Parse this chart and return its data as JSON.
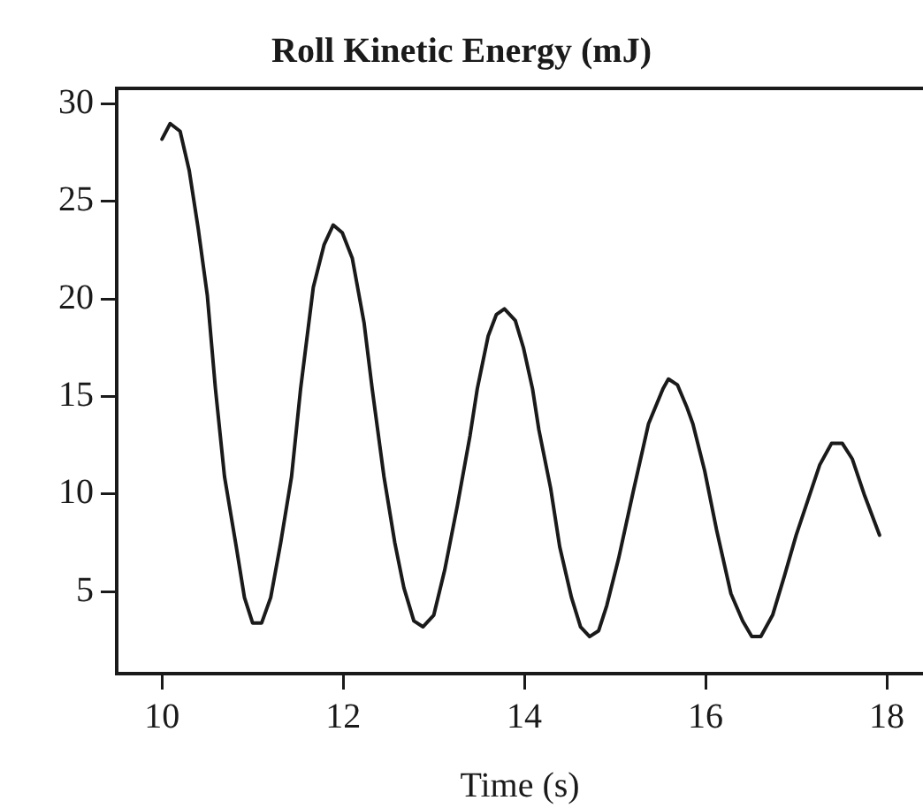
{
  "chart_data": {
    "type": "line",
    "title": "Roll Kinetic Energy (mJ)",
    "xlabel": "Time (s)",
    "xlim": [
      9.5,
      18.4
    ],
    "xticks": [
      10,
      12,
      14,
      16,
      18
    ],
    "ylim": [
      0.8,
      30.8
    ],
    "yticks": [
      5,
      10,
      15,
      20,
      25,
      30
    ],
    "grid": false,
    "legend": false,
    "marker": "none",
    "line_style": "solid",
    "series": [
      {
        "color": "#1a1a1a",
        "x": [
          10.0,
          10.09,
          10.2,
          10.3,
          10.4,
          10.5,
          10.59,
          10.69,
          10.82,
          10.91,
          11.0,
          11.1,
          11.2,
          11.31,
          11.43,
          11.53,
          11.67,
          11.79,
          11.89,
          11.99,
          12.1,
          12.23,
          12.32,
          12.45,
          12.57,
          12.67,
          12.78,
          12.88,
          13.0,
          13.12,
          13.26,
          13.4,
          13.48,
          13.6,
          13.69,
          13.78,
          13.9,
          13.99,
          14.09,
          14.16,
          14.29,
          14.39,
          14.52,
          14.62,
          14.72,
          14.82,
          14.91,
          15.04,
          15.2,
          15.37,
          15.53,
          15.59,
          15.69,
          15.79,
          15.86,
          15.99,
          16.12,
          16.28,
          16.41,
          16.51,
          16.61,
          16.74,
          16.87,
          17.0,
          17.13,
          17.26,
          17.39,
          17.51,
          17.62,
          17.75,
          17.92
        ],
        "values": [
          28.2,
          29.0,
          28.6,
          26.6,
          23.6,
          20.2,
          15.4,
          10.9,
          7.3,
          4.7,
          3.4,
          3.4,
          4.7,
          7.5,
          10.9,
          15.4,
          20.6,
          22.8,
          23.8,
          23.4,
          22.1,
          18.8,
          15.4,
          10.9,
          7.5,
          5.2,
          3.5,
          3.2,
          3.8,
          6.1,
          9.4,
          13.0,
          15.4,
          18.1,
          19.2,
          19.5,
          18.9,
          17.5,
          15.4,
          13.3,
          10.3,
          7.3,
          4.7,
          3.2,
          2.7,
          3.0,
          4.3,
          6.7,
          10.1,
          13.6,
          15.4,
          15.9,
          15.6,
          14.5,
          13.6,
          11.2,
          8.2,
          4.9,
          3.5,
          2.7,
          2.7,
          3.8,
          5.8,
          7.9,
          9.7,
          11.5,
          12.6,
          12.6,
          11.8,
          10.0,
          7.9
        ]
      }
    ]
  }
}
